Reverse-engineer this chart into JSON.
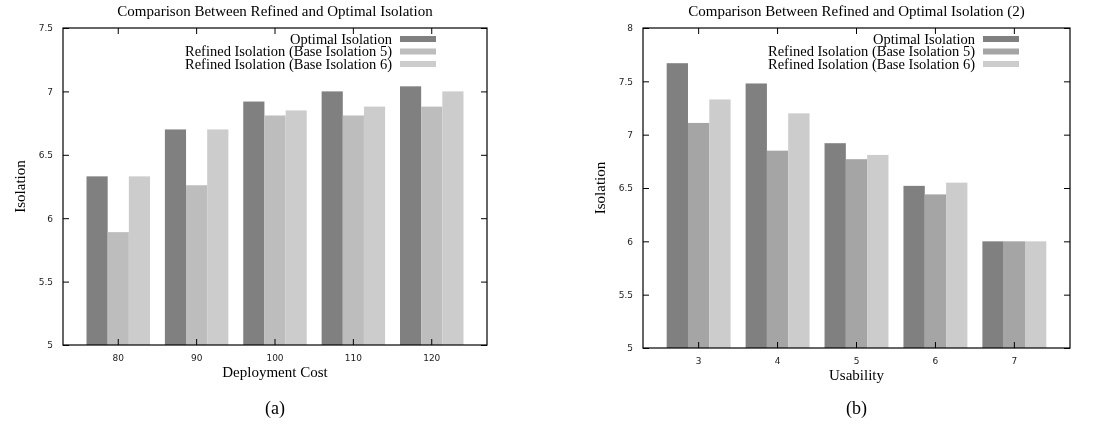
{
  "chart_data": [
    {
      "type": "bar",
      "title": "Comparison Between Refined and Optimal Isolation",
      "xlabel": "Deployment Cost",
      "ylabel": "Isolation",
      "categories": [
        "80",
        "90",
        "100",
        "110",
        "120"
      ],
      "ylim": [
        5,
        7.5
      ],
      "yticks": [
        5,
        5.5,
        6,
        6.5,
        7,
        7.5
      ],
      "legend": "top right",
      "annotations": [
        "(a)"
      ],
      "series": [
        {
          "name": "Optimal Isolation",
          "color": "#808080",
          "values": [
            6.33,
            6.7,
            6.92,
            7.0,
            7.04
          ]
        },
        {
          "name": "Refined Isolation (Base Isolation 5)",
          "color": "#bdbdbd",
          "values": [
            5.89,
            6.26,
            6.81,
            6.81,
            6.88
          ]
        },
        {
          "name": "Refined Isolation (Base Isolation 6)",
          "color": "#cccccc",
          "values": [
            6.33,
            6.7,
            6.85,
            6.88,
            7.0
          ]
        }
      ]
    },
    {
      "type": "bar",
      "title": "Comparison Between Refined and Optimal Isolation (2)",
      "xlabel": "Usability",
      "ylabel": "Isolation",
      "categories": [
        "3",
        "4",
        "5",
        "6",
        "7"
      ],
      "ylim": [
        5,
        8
      ],
      "yticks": [
        5,
        5.5,
        6,
        6.5,
        7,
        7.5,
        8
      ],
      "legend": "top right",
      "annotations": [
        "(b)"
      ],
      "series": [
        {
          "name": "Optimal Isolation",
          "color": "#808080",
          "values": [
            7.67,
            7.48,
            6.92,
            6.52,
            6.0
          ]
        },
        {
          "name": "Refined Isolation (Base Isolation 5)",
          "color": "#a5a5a5",
          "values": [
            7.11,
            6.85,
            6.77,
            6.44,
            6.0
          ]
        },
        {
          "name": "Refined Isolation (Base Isolation 6)",
          "color": "#cccccc",
          "values": [
            7.33,
            7.2,
            6.81,
            6.55,
            6.0
          ]
        }
      ]
    }
  ]
}
